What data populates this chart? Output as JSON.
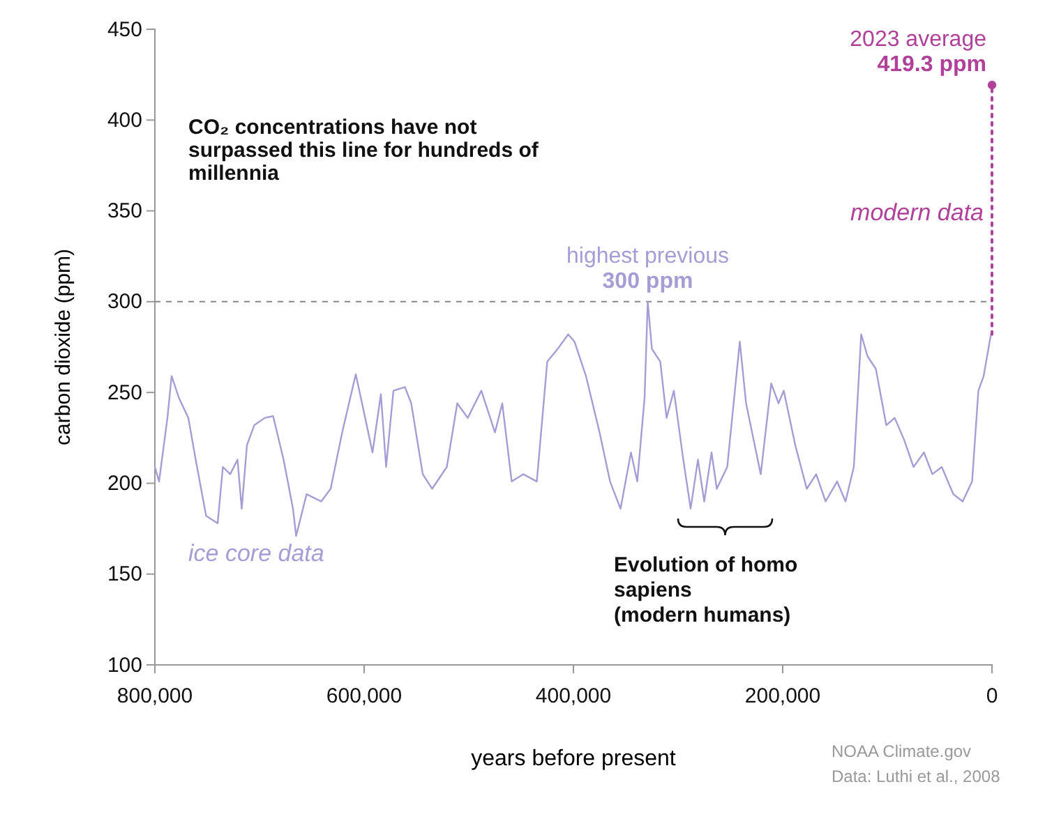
{
  "chart_data": {
    "type": "line",
    "xlabel": "years before present",
    "ylabel": "carbon dioxide (ppm)",
    "xlim": [
      800000,
      0
    ],
    "xticks": [
      {
        "value": 800000,
        "label": "800,000"
      },
      {
        "value": 600000,
        "label": "600,000"
      },
      {
        "value": 400000,
        "label": "400,000"
      },
      {
        "value": 200000,
        "label": "200,000"
      },
      0
    ],
    "ylim": [
      100,
      450
    ],
    "yticks": [
      100,
      150,
      200,
      250,
      300,
      350,
      400,
      450
    ],
    "grid": false,
    "legend": false,
    "ref_lines": [
      {
        "axis": "y",
        "value": 300,
        "color": "#888888",
        "line_style": "dashed"
      }
    ],
    "annotations": [
      {
        "text": "highest previous\n300 ppm",
        "x": 329000,
        "y": 300
      },
      {
        "text": "2023 average\n419.3 ppm",
        "x": 0,
        "y": 419.3
      },
      "CO₂ concentrations have not surpassed this line for hundreds of millennia",
      "Evolution of homo\nsapiens\n(modern humans)",
      "NOAA Climate.gov",
      "Data: Luthi et al., 2008"
    ],
    "series": [
      {
        "name": "ice core data",
        "color": "#a69cd6",
        "line_style": "solid",
        "marker": "none",
        "x": [
          800000,
          796000,
          788000,
          784000,
          777000,
          768000,
          761000,
          751000,
          740000,
          735000,
          728000,
          721000,
          717000,
          712000,
          705000,
          695000,
          687000,
          677000,
          668000,
          665000,
          655000,
          641000,
          632000,
          621000,
          608000,
          599000,
          592000,
          584000,
          579000,
          572000,
          561000,
          555000,
          544000,
          535000,
          521000,
          511000,
          501000,
          488000,
          475000,
          468000,
          459000,
          448000,
          435000,
          425000,
          415000,
          405000,
          399000,
          388000,
          375000,
          365000,
          355000,
          345000,
          339000,
          332000,
          329000,
          325000,
          317000,
          311000,
          304000,
          295000,
          288000,
          281000,
          275000,
          268000,
          263000,
          253000,
          241000,
          235000,
          221000,
          211000,
          204000,
          199000,
          188000,
          177000,
          168000,
          159000,
          148000,
          140000,
          132000,
          125000,
          119000,
          111000,
          101000,
          93000,
          84000,
          75000,
          65000,
          57000,
          48000,
          37000,
          28000,
          19000,
          13000,
          8000,
          1000
        ],
        "values": [
          209,
          201,
          236,
          259,
          247,
          236,
          213,
          182,
          178,
          209,
          205,
          213,
          186,
          221,
          232,
          236,
          237,
          213,
          186,
          171,
          194,
          190,
          197,
          228,
          260,
          236,
          217,
          249,
          209,
          251,
          253,
          244,
          205,
          197,
          209,
          244,
          236,
          251,
          228,
          244,
          201,
          205,
          201,
          267,
          274,
          282,
          278,
          259,
          228,
          201,
          186,
          217,
          201,
          247,
          300,
          274,
          267,
          236,
          251,
          213,
          186,
          213,
          190,
          217,
          197,
          209,
          278,
          244,
          205,
          255,
          244,
          251,
          221,
          197,
          205,
          190,
          201,
          190,
          209,
          282,
          270,
          263,
          232,
          236,
          224,
          209,
          217,
          205,
          209,
          194,
          190,
          201,
          251,
          259,
          282
        ]
      },
      {
        "name": "modern data",
        "color": "#b0409a",
        "line_style": "dotted",
        "marker": "circle",
        "x": [
          0,
          0
        ],
        "values": [
          282,
          419.3
        ]
      }
    ]
  }
}
